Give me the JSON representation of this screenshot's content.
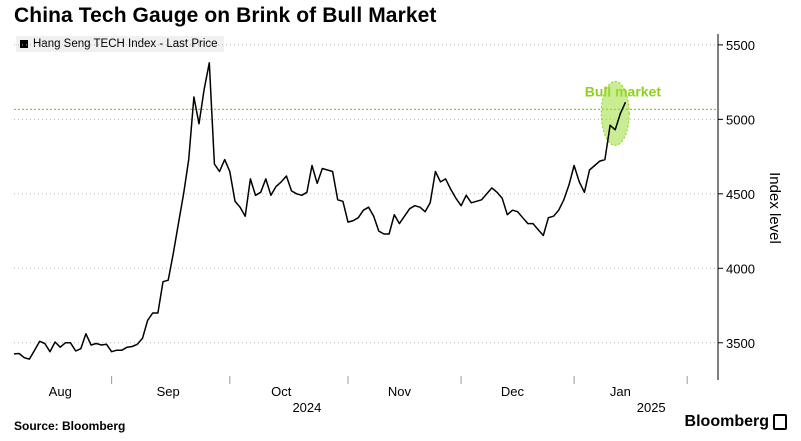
{
  "title": "China Tech Gauge on Brink of Bull Market",
  "legend": {
    "label": "Hang Seng TECH Index - Last Price"
  },
  "source": "Source: Bloomberg",
  "brand": "Bloomberg",
  "colors": {
    "line": "#000000",
    "threshold": "#8ed11d",
    "grid": "#b8b8b8",
    "highlight": "#9edc3a"
  },
  "chart_data": {
    "type": "line",
    "series": [
      {
        "values": [
          3425,
          3428,
          3400,
          3390,
          3450,
          3510,
          3495,
          3440,
          3505,
          3470,
          3500,
          3500,
          3445,
          3460,
          3560,
          3485,
          3495,
          3485,
          3490,
          3440,
          3450,
          3450,
          3470,
          3475,
          3490,
          3530,
          3650,
          3700,
          3700,
          3910,
          3920,
          4100,
          4300,
          4500,
          4730,
          5150,
          4970,
          5200,
          5380,
          4700,
          4650,
          4730,
          4650,
          4450,
          4410,
          4350,
          4600,
          4490,
          4510,
          4600,
          4490,
          4550,
          4580,
          4620,
          4520,
          4500,
          4490,
          4510,
          4690,
          4570,
          4670,
          4660,
          4650,
          4460,
          4450,
          4310,
          4320,
          4340,
          4390,
          4410,
          4350,
          4250,
          4230,
          4230,
          4360,
          4300,
          4350,
          4400,
          4420,
          4410,
          4380,
          4440,
          4650,
          4580,
          4600,
          4530,
          4470,
          4420,
          4490,
          4440,
          4450,
          4460,
          4500,
          4540,
          4510,
          4470,
          4360,
          4390,
          4380,
          4340,
          4300,
          4300,
          4260,
          4220,
          4340,
          4350,
          4390,
          4460,
          4560,
          4690,
          4580,
          4510,
          4660,
          4690,
          4720,
          4730,
          4960,
          4930,
          5040,
          5115
        ]
      }
    ],
    "x_labels": [
      {
        "label": "Aug",
        "index": 9
      },
      {
        "label": "Sep",
        "index": 30
      },
      {
        "label": "Oct",
        "index": 52
      },
      {
        "label": "Nov",
        "index": 75
      },
      {
        "label": "Dec",
        "index": 97
      },
      {
        "label": "Jan",
        "index": 118
      }
    ],
    "year_labels": [
      {
        "label": "2024",
        "index": 57
      },
      {
        "label": "2025",
        "index": 124
      }
    ],
    "x_ticks": [
      19,
      42,
      65,
      87,
      109,
      131
    ],
    "ylim": [
      3250,
      5600
    ],
    "yticks": [
      3500,
      4000,
      4500,
      5000,
      5500
    ],
    "ylabel": "Index level",
    "threshold": {
      "value": 5067,
      "label": "Bull market"
    },
    "grid": "horizontal dotted",
    "legend_position": "top-left"
  }
}
